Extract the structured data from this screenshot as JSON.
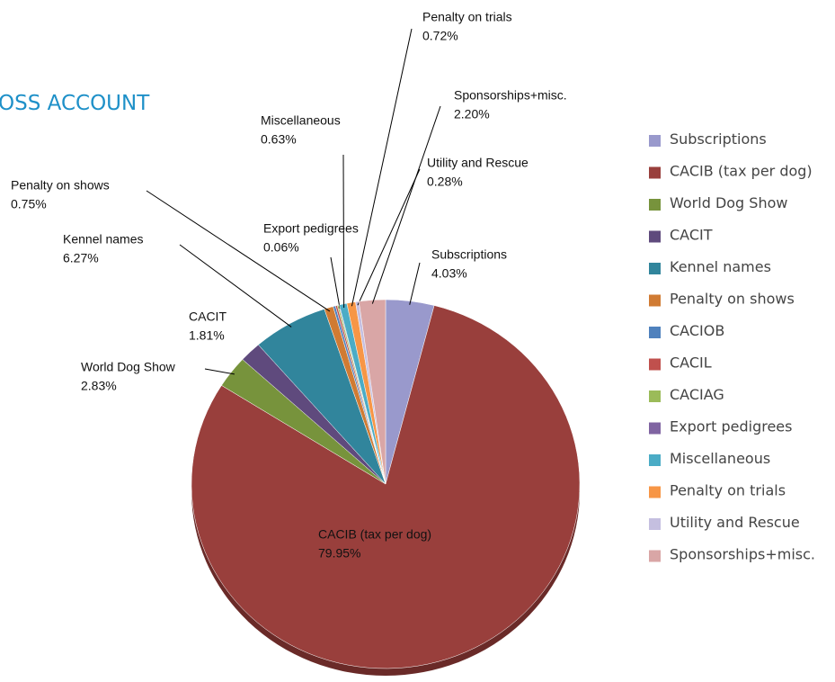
{
  "chart_data": {
    "type": "pie",
    "title": "OSS ACCOUNT",
    "categories": [
      "Subscriptions",
      "CACIB (tax per dog)",
      "World Dog Show",
      "CACIT",
      "Kennel names",
      "Penalty on shows",
      "CACIOB",
      "CACIL",
      "CACIAG",
      "Export pedigrees",
      "Miscellaneous",
      "Penalty on trials",
      "Utility and Rescue",
      "Sponsorships+misc."
    ],
    "values": [
      4.03,
      79.95,
      2.83,
      1.81,
      6.27,
      0.75,
      0.2,
      0.15,
      0.12,
      0.06,
      0.63,
      0.72,
      0.28,
      2.2
    ],
    "value_labels": [
      "4.03%",
      "79.95%",
      "2.83%",
      "1.81%",
      "6.27%",
      "0.75%",
      null,
      null,
      null,
      "0.06%",
      "0.63%",
      "0.72%",
      "0.28%",
      "2.20%"
    ],
    "colors": [
      "#9999cc",
      "#993f3c",
      "#77933c",
      "#5f4a7d",
      "#31859c",
      "#d07b33",
      "#4f81bd",
      "#c0504d",
      "#9bbb59",
      "#8064a2",
      "#4bacc6",
      "#f79646",
      "#c5bfe0",
      "#d9a6a6"
    ],
    "legend": "right"
  }
}
